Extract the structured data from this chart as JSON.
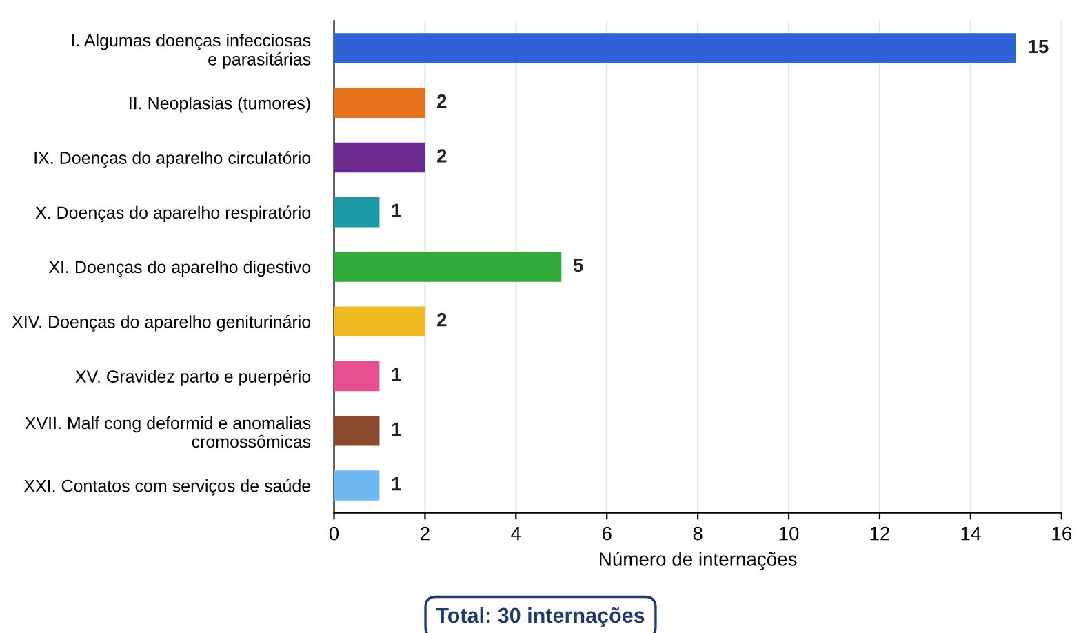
{
  "chart_data": {
    "type": "bar",
    "orientation": "horizontal",
    "categories": [
      "I. Algumas doenças infecciosas\ne parasitárias",
      "II. Neoplasias (tumores)",
      "IX. Doenças do aparelho circulatório",
      "X. Doenças do aparelho respiratório",
      "XI. Doenças do aparelho digestivo",
      "XIV. Doenças do aparelho geniturinário",
      "XV. Gravidez parto e puerpério",
      "XVII. Malf cong deformid e anomalias\ncromossômicas",
      "XXI. Contatos com serviços de saúde"
    ],
    "values": [
      15,
      2,
      2,
      1,
      5,
      2,
      1,
      1,
      1
    ],
    "colors": [
      "#2d62d8",
      "#e8711c",
      "#6a2a90",
      "#1b9aa6",
      "#2fab3b",
      "#efb920",
      "#e6508e",
      "#8b4a2c",
      "#6eb9f1"
    ],
    "xlim": [
      0,
      16
    ],
    "xticks": [
      0,
      2,
      4,
      6,
      8,
      10,
      12,
      14,
      16
    ],
    "xlabel": "Número de internações",
    "grid": "x",
    "data_labels": true,
    "annotations": [
      "Total: 30 internações"
    ]
  }
}
